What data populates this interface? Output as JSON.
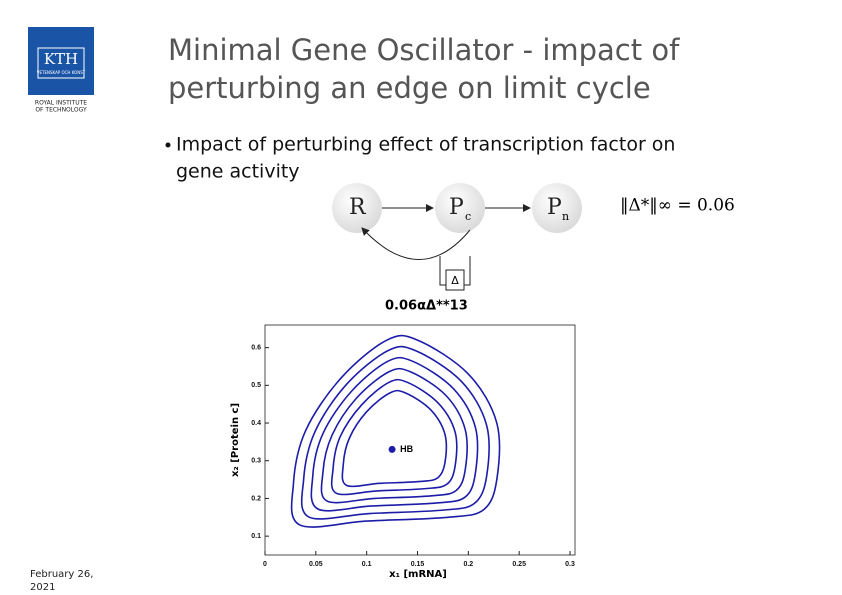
{
  "header": {
    "title_lines": [
      "Minimal Gene Oscillator - impact of",
      "perturbing an edge on limit cycle"
    ],
    "logo": {
      "mark": "KTH",
      "motto": "VETENSKAP OCH KONST",
      "institute": [
        "ROYAL INSTITUTE",
        "OF TECHNOLOGY"
      ]
    }
  },
  "bullet": [
    "Impact of perturbing effect of transcription factor on",
    "gene activity"
  ],
  "diagram": {
    "nodes": [
      {
        "label": "R"
      },
      {
        "label": "P",
        "sub": "c"
      },
      {
        "label": "P",
        "sub": "n"
      }
    ],
    "perturbation": "Δ",
    "norm": "‖Δ*‖∞ = 0.06",
    "overlay": "0.06αΔ**13"
  },
  "footer": {
    "date": [
      "February 26,",
      "2021"
    ]
  },
  "chart_data": {
    "type": "line",
    "color": "#1c1ca8",
    "xlabel": "x₁ [mRNA]",
    "ylabel": "x₂ [Protein c]",
    "xlim": [
      0,
      0.3
    ],
    "ylim": [
      0.05,
      0.66
    ],
    "xticks": [
      0,
      0.05,
      0.1,
      0.15,
      0.2,
      0.25,
      0.3
    ],
    "yticks": [
      0.1,
      0.2,
      0.3,
      0.4,
      0.5,
      0.6
    ],
    "series": [
      {
        "x": [
          0.034,
          0.1,
          0.18,
          0.215,
          0.228,
          0.228,
          0.2,
          0.15,
          0.12,
          0.075,
          0.04,
          0.028
        ],
        "values": [
          0.13,
          0.14,
          0.15,
          0.17,
          0.25,
          0.4,
          0.53,
          0.62,
          0.62,
          0.52,
          0.38,
          0.24
        ]
      },
      {
        "x": [
          0.043,
          0.103,
          0.175,
          0.206,
          0.218,
          0.218,
          0.193,
          0.148,
          0.121,
          0.08,
          0.049,
          0.038
        ],
        "values": [
          0.151,
          0.16,
          0.169,
          0.187,
          0.259,
          0.394,
          0.511,
          0.592,
          0.592,
          0.502,
          0.376,
          0.25
        ]
      },
      {
        "x": [
          0.052,
          0.105,
          0.169,
          0.197,
          0.207,
          0.207,
          0.185,
          0.145,
          0.121,
          0.085,
          0.057,
          0.047
        ],
        "values": [
          0.172,
          0.18,
          0.188,
          0.204,
          0.268,
          0.388,
          0.492,
          0.564,
          0.564,
          0.484,
          0.372,
          0.26
        ]
      },
      {
        "x": [
          0.061,
          0.108,
          0.164,
          0.188,
          0.197,
          0.197,
          0.178,
          0.143,
          0.122,
          0.09,
          0.066,
          0.057
        ],
        "values": [
          0.193,
          0.2,
          0.207,
          0.221,
          0.277,
          0.382,
          0.473,
          0.536,
          0.536,
          0.466,
          0.368,
          0.27
        ]
      },
      {
        "x": [
          0.07,
          0.11,
          0.158,
          0.179,
          0.187,
          0.187,
          0.17,
          0.14,
          0.122,
          0.095,
          0.074,
          0.067
        ],
        "values": [
          0.214,
          0.22,
          0.226,
          0.238,
          0.286,
          0.376,
          0.454,
          0.508,
          0.508,
          0.448,
          0.364,
          0.28
        ]
      },
      {
        "x": [
          0.08,
          0.113,
          0.153,
          0.17,
          0.177,
          0.177,
          0.163,
          0.138,
          0.123,
          0.1,
          0.083,
          0.077
        ],
        "values": [
          0.235,
          0.24,
          0.245,
          0.255,
          0.295,
          0.37,
          0.435,
          0.48,
          0.48,
          0.43,
          0.36,
          0.29
        ]
      }
    ],
    "annotations": [
      {
        "label": "HB",
        "x": 0.125,
        "y": 0.33
      }
    ]
  }
}
